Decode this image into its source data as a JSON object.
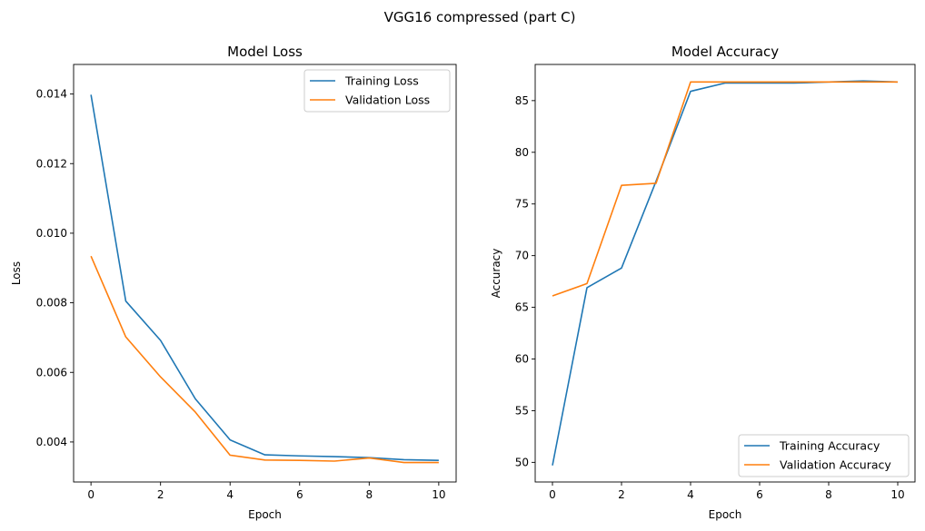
{
  "figure": {
    "suptitle": "VGG16 compressed (part C)"
  },
  "chart_data": [
    {
      "type": "line",
      "title": "Model Loss",
      "xlabel": "Epoch",
      "ylabel": "Loss",
      "xlim": [
        -0.5,
        10.5
      ],
      "ylim": [
        0.00285,
        0.01485
      ],
      "xticks": [
        0,
        2,
        4,
        6,
        8,
        10
      ],
      "xtick_labels": [
        "0",
        "2",
        "4",
        "6",
        "8",
        "10"
      ],
      "yticks": [
        0.004,
        0.006,
        0.008,
        0.01,
        0.012,
        0.014
      ],
      "ytick_labels": [
        "0.004",
        "0.006",
        "0.008",
        "0.010",
        "0.012",
        "0.014"
      ],
      "legend_position": "top-right",
      "x": [
        0,
        1,
        2,
        3,
        4,
        5,
        6,
        7,
        8,
        9,
        10
      ],
      "series": [
        {
          "name": "Training Loss",
          "color": "#1f77b4",
          "values": [
            0.01398,
            0.00805,
            0.00692,
            0.00524,
            0.00406,
            0.00363,
            0.0036,
            0.00358,
            0.00355,
            0.00349,
            0.00347
          ]
        },
        {
          "name": "Validation Loss",
          "color": "#ff7f0e",
          "values": [
            0.00934,
            0.00702,
            0.00587,
            0.00486,
            0.00362,
            0.00348,
            0.00347,
            0.00345,
            0.00354,
            0.00341,
            0.00341
          ]
        }
      ]
    },
    {
      "type": "line",
      "title": "Model Accuracy",
      "xlabel": "Epoch",
      "ylabel": "Accuracy",
      "xlim": [
        -0.5,
        10.5
      ],
      "ylim": [
        48.1,
        88.5
      ],
      "xticks": [
        0,
        2,
        4,
        6,
        8,
        10
      ],
      "xtick_labels": [
        "0",
        "2",
        "4",
        "6",
        "8",
        "10"
      ],
      "yticks": [
        50,
        55,
        60,
        65,
        70,
        75,
        80,
        85
      ],
      "ytick_labels": [
        "50",
        "55",
        "60",
        "65",
        "70",
        "75",
        "80",
        "85"
      ],
      "legend_position": "bottom-right",
      "x": [
        0,
        1,
        2,
        3,
        4,
        5,
        6,
        7,
        8,
        9,
        10
      ],
      "series": [
        {
          "name": "Training Accuracy",
          "color": "#1f77b4",
          "values": [
            49.7,
            66.9,
            68.8,
            77.2,
            85.9,
            86.7,
            86.7,
            86.7,
            86.8,
            86.9,
            86.8
          ]
        },
        {
          "name": "Validation Accuracy",
          "color": "#ff7f0e",
          "values": [
            66.1,
            67.3,
            76.8,
            77.0,
            86.8,
            86.8,
            86.8,
            86.8,
            86.8,
            86.8,
            86.8
          ]
        }
      ]
    }
  ]
}
